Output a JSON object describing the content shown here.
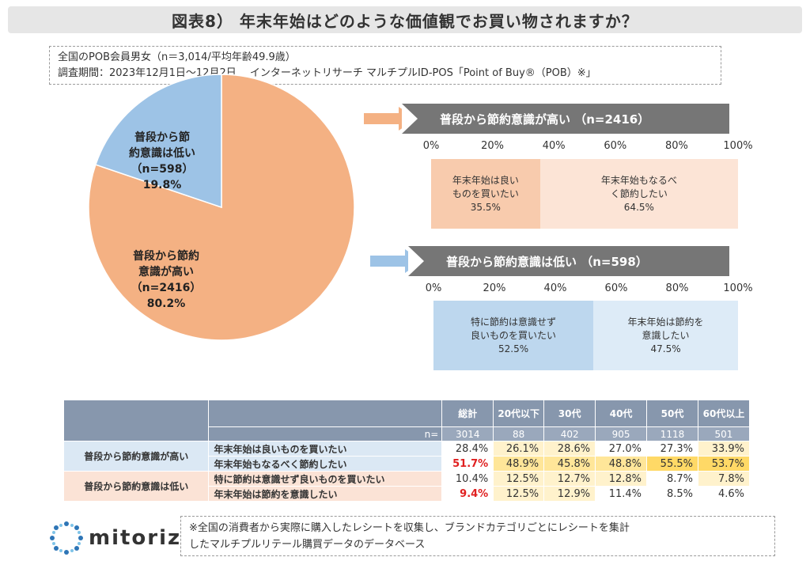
{
  "title": "図表8） 年末年始はどのような価値観でお買い物されますか？",
  "survey": {
    "line1": "全国のPOB会員男女（n＝3,014/平均年齢49.9歳）",
    "line2": "調査期間：2023年12月1日～12月2日　 インターネットリサーチ マルチプルID-POS「Point of Buy®（POB）※」"
  },
  "chart_data": [
    {
      "type": "pie",
      "slices": [
        {
          "label": "普段から節約意識が高い",
          "n": 2416,
          "value": 80.2,
          "color": "#f4b183"
        },
        {
          "label": "普段から節約意識は低い",
          "n": 598,
          "value": 19.8,
          "color": "#9dc3e6"
        }
      ]
    },
    {
      "type": "bar",
      "stacked": true,
      "orientation": "horizontal",
      "title": "普段から節約意識が高い （n=2416）",
      "xlim": [
        0,
        100
      ],
      "ticks": [
        "0%",
        "20%",
        "40%",
        "60%",
        "80%",
        "100%"
      ],
      "series": [
        {
          "name": "年末年始は良いものを買いたい",
          "value": 35.5,
          "color": "#f8cbad"
        },
        {
          "name": "年末年始もなるべく節約したい",
          "value": 64.5,
          "color": "#fce4d6"
        }
      ]
    },
    {
      "type": "bar",
      "stacked": true,
      "orientation": "horizontal",
      "title": "普段から節約意識は低い （n=598）",
      "xlim": [
        0,
        100
      ],
      "ticks": [
        "0%",
        "20%",
        "40%",
        "60%",
        "80%",
        "100%"
      ],
      "series": [
        {
          "name": "特に節約は意識せず良いものを買いたい",
          "value": 52.5,
          "color": "#bdd7ee"
        },
        {
          "name": "年末年始は節約を意識したい",
          "value": 47.5,
          "color": "#ddebf7"
        }
      ]
    },
    {
      "type": "table",
      "columns": [
        "総計",
        "20代以下",
        "30代",
        "40代",
        "50代",
        "60代以上"
      ],
      "n_label": "n=",
      "n_values": [
        "3014",
        "88",
        "402",
        "905",
        "1118",
        "501"
      ],
      "groups": [
        {
          "name": "普段から節約意識が高い",
          "rows": [
            {
              "label": "年末年始は良いものを買いたい",
              "values": [
                "28.4%",
                "26.1%",
                "28.6%",
                "27.0%",
                "27.3%",
                "33.9%"
              ]
            },
            {
              "label": "年末年始もなるべく節約したい",
              "values": [
                "51.7%",
                "48.9%",
                "45.8%",
                "48.8%",
                "55.5%",
                "53.7%"
              ]
            }
          ]
        },
        {
          "name": "普段から節約意識は低い",
          "rows": [
            {
              "label": "特に節約は意識せず良いものを買いたい",
              "values": [
                "10.4%",
                "12.5%",
                "12.7%",
                "12.8%",
                "8.7%",
                "7.8%"
              ]
            },
            {
              "label": "年末年始は節約を意識したい",
              "values": [
                "9.4%",
                "12.5%",
                "12.9%",
                "11.4%",
                "8.5%",
                "4.6%"
              ]
            }
          ]
        }
      ]
    }
  ],
  "colors": {
    "high_accent": "#f4b183",
    "low_accent": "#9dc3e6",
    "header_gray": "#767676",
    "table_header": "#8797ad",
    "highlight_strong": "#ffd966",
    "highlight_light": "#fff2cc",
    "red_text": "#e02020"
  },
  "logo": {
    "text": "mitoriz",
    "icon": "mitoriz-logo-icon"
  },
  "note": {
    "line1": "※全国の消費者から実際に購入したレシートを収集し、ブランドカテゴリごとにレシートを集計",
    "line2": "したマルチプルリテール購買データのデータベース"
  }
}
